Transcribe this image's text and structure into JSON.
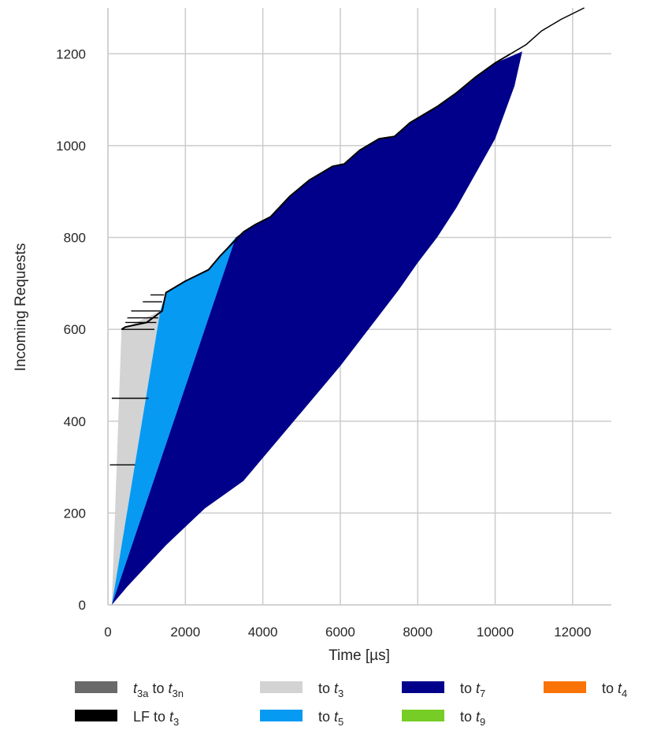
{
  "chart_data": {
    "type": "area",
    "xlabel": "Time [µs]",
    "ylabel": "Incoming Requests",
    "xlim": [
      0,
      13000
    ],
    "ylim": [
      0,
      1300
    ],
    "xticks": [
      0,
      2000,
      4000,
      6000,
      8000,
      10000,
      12000
    ],
    "yticks": [
      0,
      200,
      400,
      600,
      800,
      1000,
      1200
    ],
    "grid": true,
    "legend_position": "bottom",
    "series": [
      {
        "name": "t3a to t3n",
        "color": "#696969",
        "x": [],
        "y": []
      },
      {
        "name": "LF to t3",
        "color": "#000000",
        "x": [
          100,
          350,
          450,
          1000,
          1400,
          1500,
          2000,
          2600,
          2900,
          3300,
          3500,
          3800,
          4200,
          4700,
          5200,
          5800,
          6100,
          6500,
          7000,
          7400,
          7800,
          8500,
          9000,
          9500,
          10000,
          10400,
          10800,
          11200,
          11700,
          12300
        ],
        "y": [
          0,
          600,
          605,
          615,
          640,
          680,
          705,
          730,
          760,
          795,
          812,
          828,
          845,
          890,
          925,
          955,
          960,
          990,
          1015,
          1020,
          1050,
          1085,
          1115,
          1150,
          1180,
          1200,
          1220,
          1250,
          1275,
          1300
        ]
      },
      {
        "name": "to t3",
        "color": "#d3d3d3",
        "x": [
          100,
          350,
          1350
        ],
        "y": [
          0,
          600,
          640
        ]
      },
      {
        "name": "to t5",
        "color": "#069af3",
        "x": [
          100,
          1350,
          1500,
          2000,
          2600,
          2900,
          3300
        ],
        "y": [
          0,
          640,
          680,
          705,
          730,
          760,
          800
        ]
      },
      {
        "name": "to t7",
        "color": "#00008b",
        "x": [
          3300,
          3500,
          3800,
          4200,
          4700,
          5200,
          5800,
          6100,
          6500,
          7000,
          7400,
          7800,
          8500,
          9000,
          9500,
          10000,
          10700
        ],
        "y": [
          800,
          812,
          828,
          845,
          890,
          925,
          955,
          960,
          990,
          1015,
          1020,
          1050,
          1085,
          1115,
          1150,
          1180,
          1205
        ]
      },
      {
        "name": "to t9",
        "color": "#76cd26",
        "x": [],
        "y": []
      },
      {
        "name": "to t4",
        "color": "#f97306",
        "x": [],
        "y": []
      }
    ],
    "lower_boundary": {
      "x": [
        100,
        500,
        1000,
        1500,
        2000,
        2500,
        3000,
        3500,
        4000,
        4500,
        5000,
        5500,
        6000,
        6500,
        7000,
        7500,
        8000,
        8500,
        9000,
        9500,
        10000,
        10500,
        10700
      ],
      "y": [
        0,
        40,
        85,
        130,
        170,
        210,
        240,
        270,
        320,
        370,
        420,
        470,
        520,
        575,
        630,
        685,
        745,
        800,
        865,
        940,
        1015,
        1130,
        1205
      ]
    },
    "legend": [
      {
        "label": "t3a to t3n",
        "color": "#696969"
      },
      {
        "label": "to t3",
        "color": "#d3d3d3"
      },
      {
        "label": "to t7",
        "color": "#00008b"
      },
      {
        "label": "to t4",
        "color": "#f97306"
      },
      {
        "label": "LF to t3",
        "color": "#000000"
      },
      {
        "label": "to t5",
        "color": "#069af3"
      },
      {
        "label": "to t9",
        "color": "#76cd26"
      }
    ]
  }
}
